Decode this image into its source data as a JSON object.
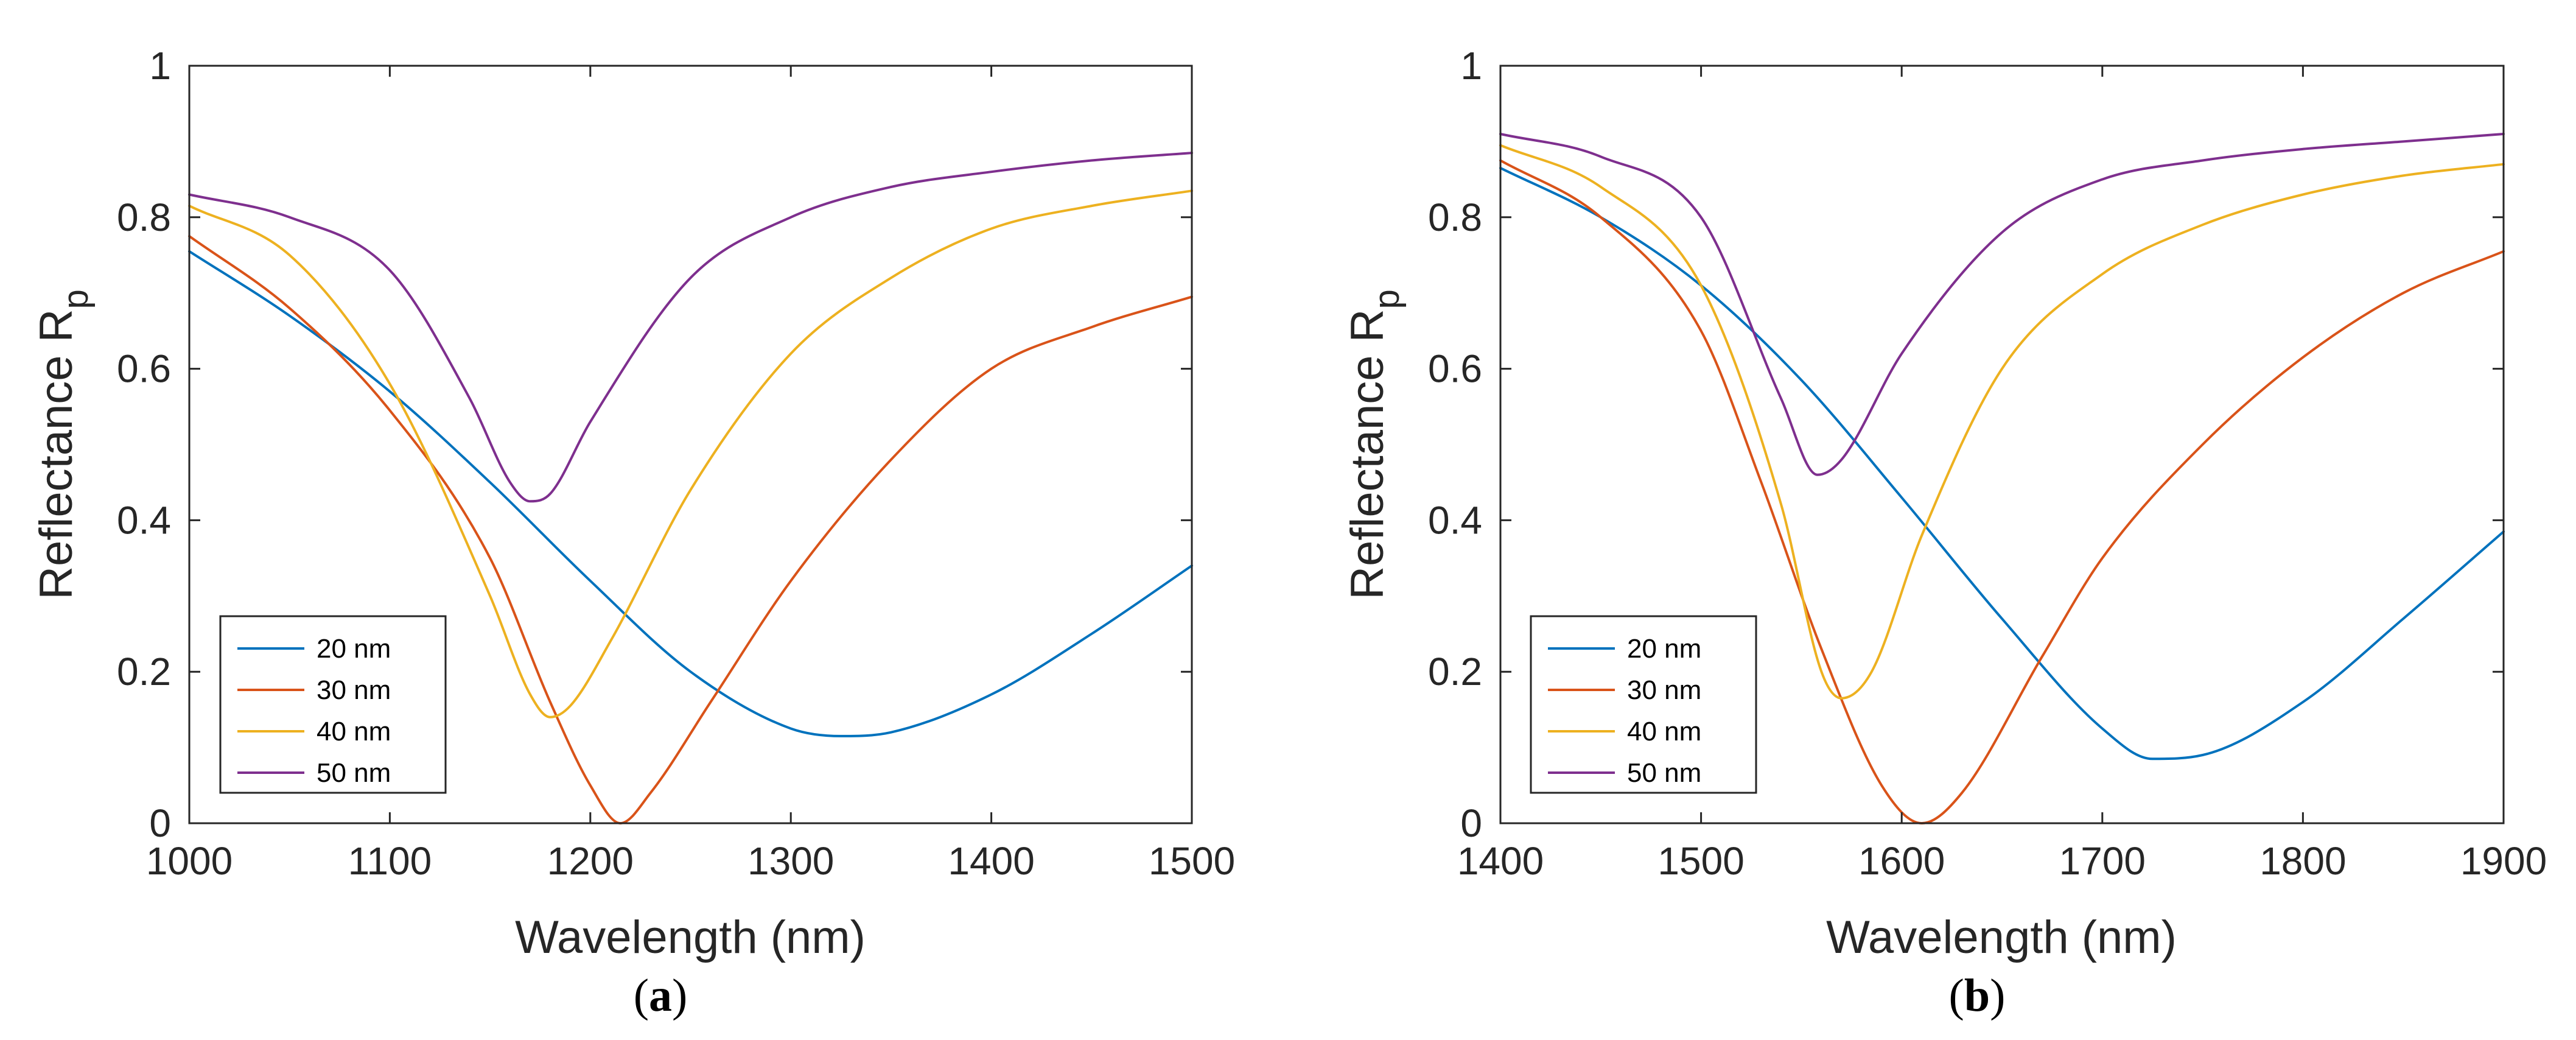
{
  "chart_data": [
    {
      "type": "line",
      "panel": "a",
      "caption_letter": "a",
      "xlabel": "Wavelength (nm)",
      "ylabel_main": "Reflectance R",
      "ylabel_sub": "p",
      "xlim": [
        1000,
        1500
      ],
      "ylim": [
        0,
        1
      ],
      "xticks": [
        1000,
        1100,
        1200,
        1300,
        1400,
        1500
      ],
      "yticks": [
        "0",
        "0.2",
        "0.4",
        "0.6",
        "0.8",
        "1"
      ],
      "legend_position": "bottom-left",
      "series": [
        {
          "name": "20 nm",
          "color": "#0072BD",
          "points": [
            [
              1000,
              0.755
            ],
            [
              1050,
              0.67
            ],
            [
              1100,
              0.57
            ],
            [
              1150,
              0.45
            ],
            [
              1200,
              0.32
            ],
            [
              1250,
              0.2
            ],
            [
              1300,
              0.125
            ],
            [
              1325,
              0.115
            ],
            [
              1350,
              0.12
            ],
            [
              1400,
              0.17
            ],
            [
              1450,
              0.25
            ],
            [
              1500,
              0.34
            ]
          ]
        },
        {
          "name": "30 nm",
          "color": "#D95319",
          "points": [
            [
              1000,
              0.775
            ],
            [
              1050,
              0.68
            ],
            [
              1100,
              0.545
            ],
            [
              1150,
              0.35
            ],
            [
              1180,
              0.16
            ],
            [
              1200,
              0.05
            ],
            [
              1215,
              0.0
            ],
            [
              1230,
              0.04
            ],
            [
              1260,
              0.16
            ],
            [
              1300,
              0.32
            ],
            [
              1350,
              0.48
            ],
            [
              1400,
              0.6
            ],
            [
              1450,
              0.655
            ],
            [
              1500,
              0.695
            ]
          ]
        },
        {
          "name": "40 nm",
          "color": "#EDB120",
          "points": [
            [
              1000,
              0.815
            ],
            [
              1050,
              0.75
            ],
            [
              1100,
              0.58
            ],
            [
              1150,
              0.3
            ],
            [
              1170,
              0.17
            ],
            [
              1180,
              0.14
            ],
            [
              1190,
              0.155
            ],
            [
              1210,
              0.24
            ],
            [
              1250,
              0.44
            ],
            [
              1300,
              0.62
            ],
            [
              1350,
              0.72
            ],
            [
              1400,
              0.785
            ],
            [
              1450,
              0.815
            ],
            [
              1500,
              0.835
            ]
          ]
        },
        {
          "name": "50 nm",
          "color": "#7E2F8E",
          "points": [
            [
              1000,
              0.83
            ],
            [
              1050,
              0.8
            ],
            [
              1100,
              0.73
            ],
            [
              1140,
              0.56
            ],
            [
              1160,
              0.45
            ],
            [
              1170,
              0.425
            ],
            [
              1180,
              0.435
            ],
            [
              1200,
              0.53
            ],
            [
              1250,
              0.72
            ],
            [
              1300,
              0.8
            ],
            [
              1350,
              0.84
            ],
            [
              1400,
              0.86
            ],
            [
              1450,
              0.875
            ],
            [
              1500,
              0.885
            ]
          ]
        }
      ]
    },
    {
      "type": "line",
      "panel": "b",
      "caption_letter": "b",
      "xlabel": "Wavelength (nm)",
      "ylabel_main": "Reflectance R",
      "ylabel_sub": "p",
      "xlim": [
        1400,
        1900
      ],
      "ylim": [
        0,
        1
      ],
      "xticks": [
        1400,
        1500,
        1600,
        1700,
        1800,
        1900
      ],
      "yticks": [
        "0",
        "0.2",
        "0.4",
        "0.6",
        "0.8",
        "1"
      ],
      "legend_position": "bottom-left",
      "series": [
        {
          "name": "20 nm",
          "color": "#0072BD",
          "points": [
            [
              1400,
              0.865
            ],
            [
              1450,
              0.8
            ],
            [
              1500,
              0.71
            ],
            [
              1550,
              0.585
            ],
            [
              1600,
              0.43
            ],
            [
              1650,
              0.27
            ],
            [
              1700,
              0.125
            ],
            [
              1725,
              0.085
            ],
            [
              1750,
              0.09
            ],
            [
              1800,
              0.16
            ],
            [
              1850,
              0.27
            ],
            [
              1900,
              0.385
            ]
          ]
        },
        {
          "name": "30 nm",
          "color": "#D95319",
          "points": [
            [
              1400,
              0.875
            ],
            [
              1450,
              0.8
            ],
            [
              1500,
              0.65
            ],
            [
              1530,
              0.45
            ],
            [
              1560,
              0.23
            ],
            [
              1590,
              0.05
            ],
            [
              1610,
              0.0
            ],
            [
              1630,
              0.04
            ],
            [
              1670,
              0.22
            ],
            [
              1700,
              0.35
            ],
            [
              1750,
              0.5
            ],
            [
              1800,
              0.615
            ],
            [
              1850,
              0.7
            ],
            [
              1900,
              0.755
            ]
          ]
        },
        {
          "name": "40 nm",
          "color": "#EDB120",
          "points": [
            [
              1400,
              0.895
            ],
            [
              1450,
              0.84
            ],
            [
              1500,
              0.71
            ],
            [
              1540,
              0.42
            ],
            [
              1560,
              0.2
            ],
            [
              1570,
              0.165
            ],
            [
              1585,
              0.2
            ],
            [
              1610,
              0.38
            ],
            [
              1650,
              0.6
            ],
            [
              1700,
              0.725
            ],
            [
              1750,
              0.79
            ],
            [
              1800,
              0.83
            ],
            [
              1850,
              0.855
            ],
            [
              1900,
              0.87
            ]
          ]
        },
        {
          "name": "50 nm",
          "color": "#7E2F8E",
          "points": [
            [
              1400,
              0.91
            ],
            [
              1450,
              0.88
            ],
            [
              1500,
              0.8
            ],
            [
              1540,
              0.56
            ],
            [
              1558,
              0.46
            ],
            [
              1570,
              0.48
            ],
            [
              1600,
              0.62
            ],
            [
              1650,
              0.78
            ],
            [
              1700,
              0.85
            ],
            [
              1750,
              0.875
            ],
            [
              1800,
              0.89
            ],
            [
              1850,
              0.9
            ],
            [
              1900,
              0.91
            ]
          ]
        }
      ]
    }
  ]
}
